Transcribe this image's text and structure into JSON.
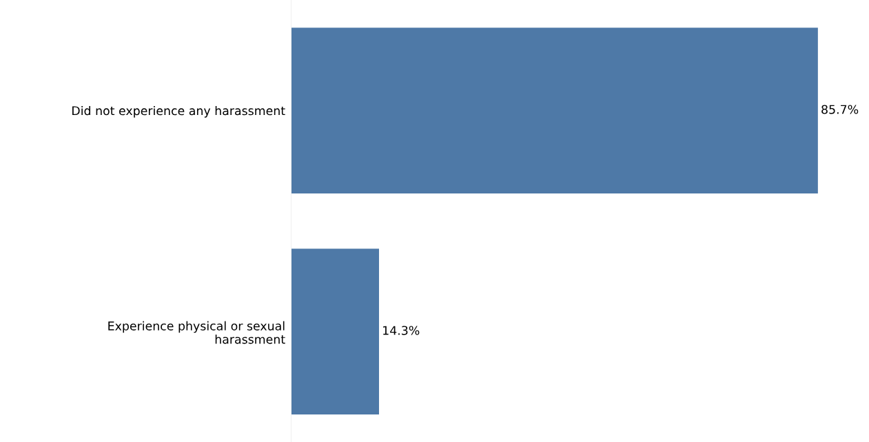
{
  "chart_data": {
    "type": "bar",
    "orientation": "horizontal",
    "categories": [
      "Did not experience any harassment",
      "Experience physical or sexual\nharassment"
    ],
    "values": [
      85.7,
      14.3
    ],
    "color": "#4e79a7",
    "value_labels": [
      "85.7%",
      "14.3%"
    ],
    "grid": false,
    "legend": false
  }
}
